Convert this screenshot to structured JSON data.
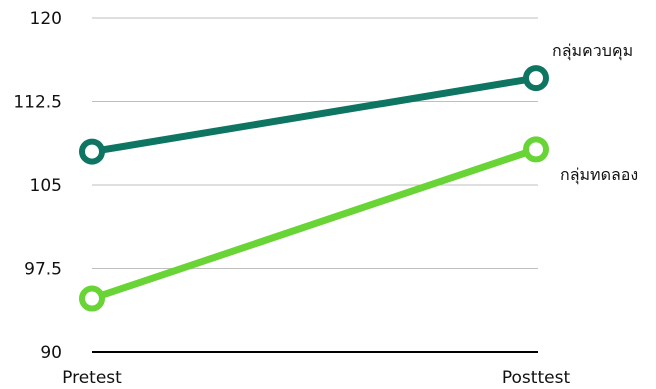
{
  "chart_data": {
    "type": "line",
    "categories": [
      "Pretest",
      "Posttest"
    ],
    "ylim": [
      90,
      120
    ],
    "yticks": [
      90,
      97.5,
      105,
      112.5,
      120
    ],
    "ytick_labels": [
      "90",
      "97.5",
      "105",
      "112.5",
      "120"
    ],
    "grid": true,
    "series": [
      {
        "name": "กลุ่มควบคุม",
        "values": [
          108,
          114.6
        ],
        "color": "#0f7563"
      },
      {
        "name": "กลุ่มทดลอง",
        "values": [
          94.8,
          108.2
        ],
        "color": "#68d435"
      }
    ],
    "labels_placement": "end-of-line"
  }
}
